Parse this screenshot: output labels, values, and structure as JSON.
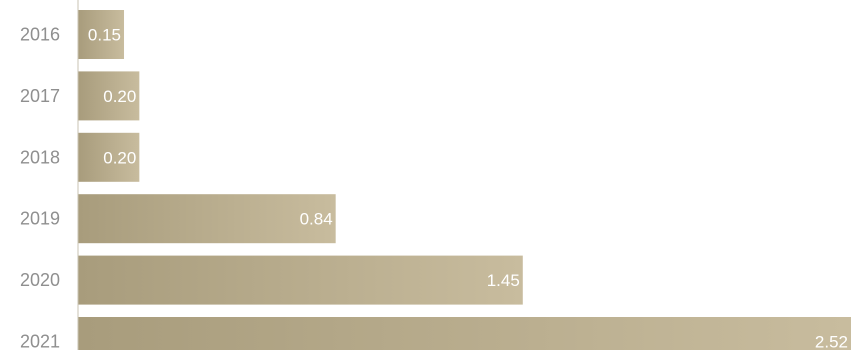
{
  "chart_data": {
    "type": "bar",
    "orientation": "horizontal",
    "categories": [
      "2016",
      "2017",
      "2018",
      "2019",
      "2020",
      "2021"
    ],
    "values": [
      0.15,
      0.2,
      0.2,
      0.84,
      1.45,
      2.52
    ],
    "value_labels": [
      "0.15",
      "0.20",
      "0.20",
      "0.84",
      "1.45",
      "2.52"
    ],
    "title": "",
    "xlabel": "",
    "ylabel": "",
    "xlim": [
      0,
      2.52
    ],
    "grid": false,
    "legend": "none",
    "colors": {
      "bar_start": "#a89c7c",
      "bar_end": "#c8bc9e",
      "axis": "#c9c3b3",
      "category_text": "#8f8f8f",
      "value_text": "#ffffff"
    }
  }
}
